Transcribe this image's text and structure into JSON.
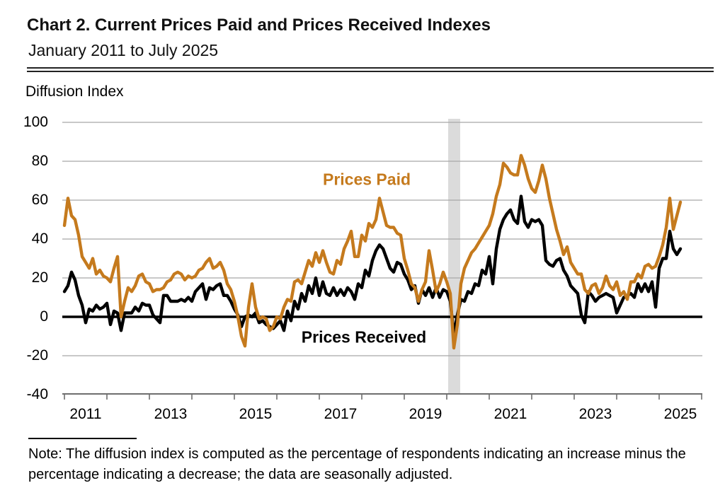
{
  "header": {
    "title": "Chart 2. Current Prices Paid and Prices Received Indexes",
    "subtitle": "January 2011 to July 2025"
  },
  "y_axis_title": "Diffusion Index",
  "legend": {
    "paid_label": "Prices Paid",
    "received_label": "Prices Received"
  },
  "note": "Note: The diffusion index is computed as the percentage of respondents indicating an increase minus the percentage indicating a decrease; the data are seasonally adjusted.",
  "colors": {
    "paid": "#C57A1D",
    "received": "#000000",
    "gridline": "#A8A8A8",
    "zero_line": "#000000",
    "axis": "#6E6E6E",
    "recession_band": "#DBDBDB",
    "text": "#000000"
  },
  "chart_data": {
    "type": "line",
    "title": "Chart 2. Current Prices Paid and Prices Received Indexes",
    "subtitle": "January 2011 to July 2025",
    "ylabel": "Diffusion Index",
    "frequency": "monthly",
    "x_start": "2011-01",
    "x_end": "2025-07",
    "ylim": [
      -40,
      100
    ],
    "y_ticks": [
      100,
      80,
      60,
      40,
      20,
      0,
      -20,
      -40
    ],
    "y_gridlines": [
      100,
      80,
      60,
      40,
      20,
      -20
    ],
    "zero_line": true,
    "grid": "horizontal",
    "x_tick_years": [
      2011,
      2012,
      2013,
      2014,
      2015,
      2016,
      2017,
      2018,
      2019,
      2020,
      2021,
      2022,
      2023,
      2024,
      2025,
      2026
    ],
    "x_label_years": [
      2011,
      2013,
      2015,
      2017,
      2019,
      2021,
      2023,
      2025
    ],
    "recession_band": {
      "start": "2020-02",
      "end": "2020-04"
    },
    "series": [
      {
        "name": "Prices Paid",
        "color": "#C57A1D",
        "values": [
          47,
          61,
          52,
          50,
          42,
          31,
          28,
          25,
          30,
          22,
          24,
          21,
          20,
          18,
          25,
          31,
          0,
          8,
          15,
          13,
          16,
          21,
          22,
          18,
          17,
          13,
          14,
          14,
          15,
          18,
          19,
          22,
          23,
          22,
          19,
          21,
          20,
          21,
          24,
          25,
          28,
          30,
          25,
          26,
          28,
          24,
          17,
          14,
          8,
          0,
          -10,
          -15,
          5,
          17,
          5,
          -1,
          0,
          -1,
          -7,
          -5,
          0,
          -1,
          5,
          9,
          8,
          18,
          19,
          17,
          23,
          29,
          26,
          33,
          28,
          34,
          28,
          23,
          22,
          29,
          27,
          35,
          39,
          44,
          31,
          31,
          42,
          39,
          48,
          46,
          50,
          61,
          54,
          47,
          46,
          46,
          43,
          42,
          30,
          24,
          17,
          15,
          8,
          14,
          18,
          34,
          24,
          13,
          17,
          23,
          18,
          12,
          -16,
          -4,
          17,
          25,
          29,
          33,
          35,
          38,
          41,
          44,
          47,
          53,
          62,
          68,
          79,
          77,
          74,
          73,
          73,
          83,
          78,
          71,
          66,
          64,
          70,
          78,
          71,
          61,
          53,
          45,
          39,
          32,
          36,
          28,
          25,
          22,
          22,
          14,
          12,
          16,
          17,
          12,
          15,
          21,
          16,
          14,
          18,
          11,
          13,
          9,
          18,
          18,
          22,
          20,
          26,
          27,
          25,
          26,
          31,
          37,
          46,
          61,
          45,
          52,
          59
        ]
      },
      {
        "name": "Prices Received",
        "color": "#000000",
        "values": [
          13,
          16,
          23,
          19,
          11,
          6,
          -3,
          4,
          3,
          6,
          4,
          5,
          7,
          -4,
          3,
          2,
          -7,
          2,
          2,
          2,
          5,
          3,
          7,
          6,
          6,
          1,
          -1,
          -3,
          11,
          11,
          8,
          8,
          8,
          9,
          8,
          10,
          8,
          13,
          15,
          17,
          9,
          15,
          14,
          16,
          17,
          11,
          11,
          8,
          4,
          1,
          -5,
          0,
          1,
          0,
          2,
          -3,
          -2,
          -4,
          -5,
          -6,
          -4,
          -2,
          -7,
          3,
          -2,
          8,
          4,
          12,
          8,
          16,
          12,
          20,
          11,
          18,
          12,
          11,
          15,
          11,
          14,
          11,
          15,
          13,
          9,
          17,
          15,
          24,
          21,
          29,
          34,
          37,
          35,
          30,
          25,
          23,
          28,
          27,
          22,
          19,
          14,
          16,
          7,
          14,
          11,
          15,
          10,
          15,
          10,
          14,
          13,
          8,
          -9,
          1,
          9,
          8,
          13,
          12,
          17,
          16,
          24,
          22,
          31,
          17,
          35,
          45,
          50,
          53,
          55,
          50,
          48,
          62,
          49,
          46,
          50,
          49,
          50,
          47,
          29,
          27,
          26,
          29,
          30,
          24,
          21,
          16,
          14,
          12,
          1,
          -3,
          13,
          11,
          8,
          10,
          11,
          12,
          11,
          10,
          2,
          6,
          10,
          11,
          12,
          10,
          17,
          13,
          17,
          13,
          18,
          5,
          25,
          30,
          30,
          44,
          35,
          32,
          35
        ]
      }
    ]
  }
}
